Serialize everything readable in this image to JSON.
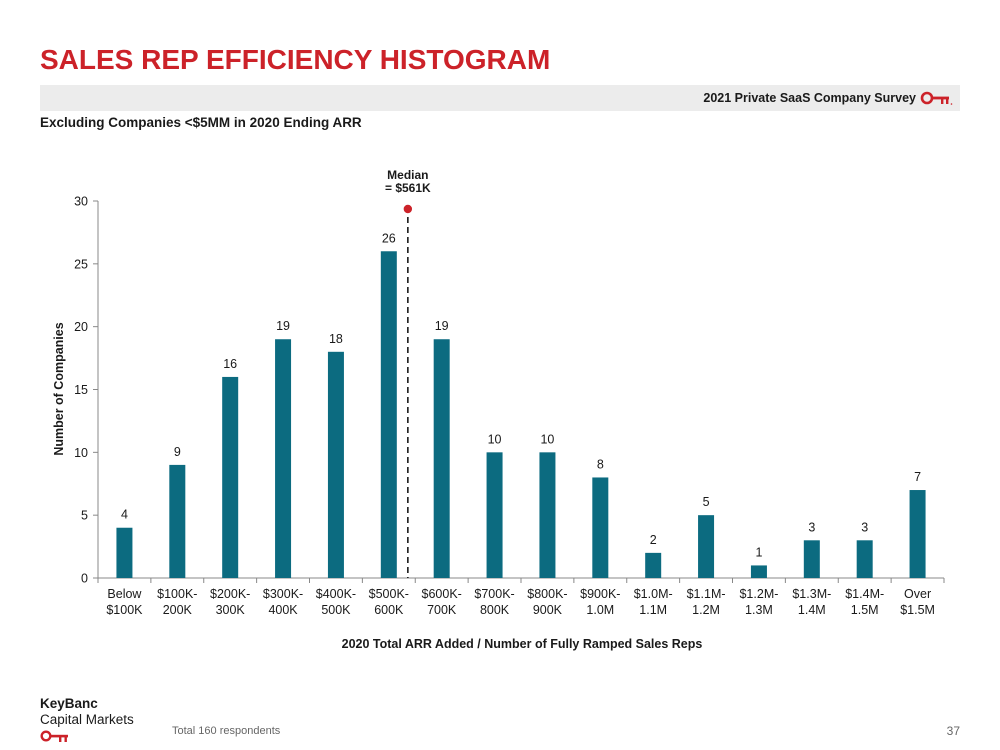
{
  "title": "SALES REP EFFICIENCY HISTOGRAM",
  "survey_label": "2021 Private SaaS Company Survey",
  "subtitle": "Excluding Companies <$5MM in 2020 Ending ARR",
  "footer": {
    "logo_line1": "KeyBanc",
    "logo_line2": "Capital Markets",
    "note": "Total 160 respondents",
    "page": "37"
  },
  "colors": {
    "accent": "#cc2229",
    "bar": "#0c6b80"
  },
  "chart_data": {
    "type": "bar",
    "categories": [
      [
        "Below",
        "$100K"
      ],
      [
        "$100K-",
        "200K"
      ],
      [
        "$200K-",
        "300K"
      ],
      [
        "$300K-",
        "400K"
      ],
      [
        "$400K-",
        "500K"
      ],
      [
        "$500K-",
        "600K"
      ],
      [
        "$600K-",
        "700K"
      ],
      [
        "$700K-",
        "800K"
      ],
      [
        "$800K-",
        "900K"
      ],
      [
        "$900K-",
        "1.0M"
      ],
      [
        "$1.0M-",
        "1.1M"
      ],
      [
        "$1.1M-",
        "1.2M"
      ],
      [
        "$1.2M-",
        "1.3M"
      ],
      [
        "$1.3M-",
        "1.4M"
      ],
      [
        "$1.4M-",
        "1.5M"
      ],
      [
        "Over",
        "$1.5M"
      ]
    ],
    "values": [
      4,
      9,
      16,
      19,
      18,
      26,
      19,
      10,
      10,
      8,
      2,
      5,
      1,
      3,
      3,
      7
    ],
    "xlabel": "2020 Total ARR Added / Number of Fully Ramped Sales Reps",
    "ylabel": "Number of Companies",
    "ylim": [
      0,
      30
    ],
    "yticks": [
      0,
      5,
      10,
      15,
      20,
      25,
      30
    ],
    "grid": false,
    "annotation": {
      "lines": [
        "Median",
        "= $561K"
      ],
      "value_k": 561
    }
  }
}
